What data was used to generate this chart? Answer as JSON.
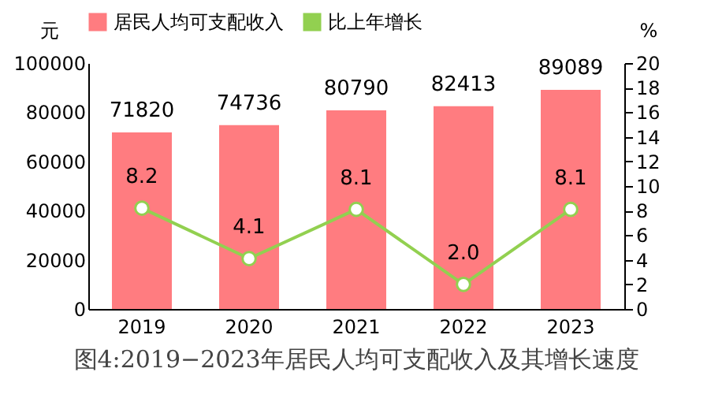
{
  "chart_data": {
    "type": "bar",
    "title": "图4:2019−2023年居民人均可支配收入及其增长速度",
    "ylabel": "元",
    "y2label": "%",
    "categories": [
      "2019",
      "2020",
      "2021",
      "2022",
      "2023"
    ],
    "series": [
      {
        "name": "居民人均可支配收入",
        "color": "#ff7c80",
        "values": [
          71820,
          74736,
          80790,
          82413,
          89089
        ],
        "data_labels": true
      },
      {
        "name": "比上年增长",
        "type": "line",
        "axis": "y2",
        "color": "#92d050",
        "values": [
          8.2,
          4.1,
          8.1,
          2.0,
          8.1
        ],
        "value_labels": [
          "8.2",
          "4.1",
          "8.1",
          "2.0",
          "8.1"
        ],
        "marker": "circle"
      }
    ],
    "ylim": [
      0,
      100000
    ],
    "yticks": [
      0,
      20000,
      40000,
      60000,
      80000,
      100000
    ],
    "y2lim": [
      0,
      20
    ],
    "y2ticks": [
      0,
      2,
      4,
      6,
      8,
      10,
      12,
      14,
      16,
      18,
      20
    ],
    "grid": false,
    "legend": "top"
  }
}
